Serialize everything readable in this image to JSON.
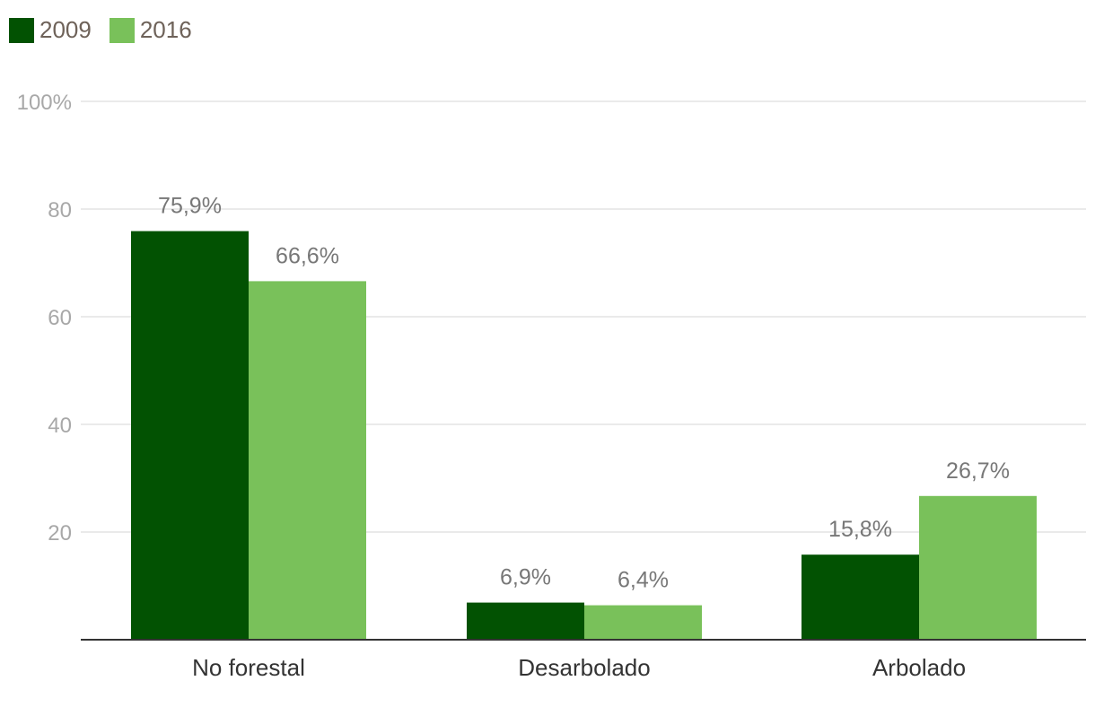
{
  "chart_data": {
    "type": "bar",
    "categories": [
      "No forestal",
      "Desarbolado",
      "Arbolado"
    ],
    "series": [
      {
        "name": "2009",
        "color": "#025202",
        "values": [
          75.9,
          6.9,
          15.8
        ],
        "labels": [
          "75,9%",
          "6,9%",
          "15,8%"
        ]
      },
      {
        "name": "2016",
        "color": "#79c15a",
        "values": [
          66.6,
          6.4,
          26.7
        ],
        "labels": [
          "66,6%",
          "6,4%",
          "26,7%"
        ]
      }
    ],
    "ylim": [
      0,
      100
    ],
    "yticks": [
      20,
      40,
      60,
      80,
      100
    ],
    "ytick_labels": [
      "20",
      "40",
      "60",
      "80",
      "100%"
    ],
    "title": "",
    "xlabel": "",
    "ylabel": "",
    "grid": true,
    "legend_position": "top-left"
  }
}
